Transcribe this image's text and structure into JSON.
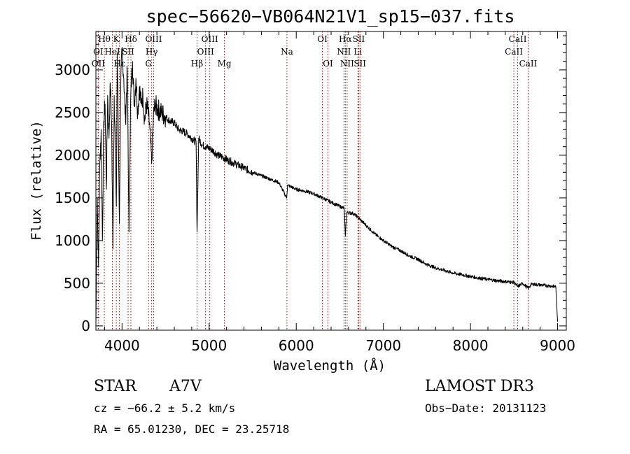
{
  "chart_data": {
    "type": "line",
    "title": "spec−56620−VB064N21V1_sp15−037.fits",
    "xlabel": "Wavelength (Å)",
    "ylabel": "Flux (relative)",
    "xlim": [
      3700,
      9100
    ],
    "ylim": [
      -50,
      3450
    ],
    "xticks": [
      4000,
      5000,
      6000,
      7000,
      8000,
      9000
    ],
    "yticks": [
      0,
      500,
      1000,
      1500,
      2000,
      2500,
      3000
    ],
    "series": [
      {
        "name": "flux",
        "x": [
          3700,
          3715,
          3730,
          3745,
          3760,
          3775,
          3790,
          3805,
          3820,
          3835,
          3850,
          3865,
          3880,
          3895,
          3910,
          3925,
          3935,
          3945,
          3955,
          3970,
          3985,
          4000,
          4020,
          4040,
          4060,
          4080,
          4100,
          4120,
          4140,
          4160,
          4180,
          4200,
          4220,
          4240,
          4260,
          4280,
          4300,
          4320,
          4340,
          4360,
          4380,
          4400,
          4450,
          4500,
          4550,
          4600,
          4650,
          4700,
          4750,
          4800,
          4850,
          4861,
          4880,
          4920,
          4960,
          5000,
          5050,
          5100,
          5150,
          5200,
          5300,
          5400,
          5500,
          5600,
          5700,
          5800,
          5890,
          5900,
          6000,
          6100,
          6200,
          6300,
          6400,
          6500,
          6550,
          6563,
          6580,
          6650,
          6700,
          6800,
          6900,
          7000,
          7100,
          7200,
          7300,
          7400,
          7500,
          7600,
          7700,
          7800,
          7900,
          8000,
          8100,
          8200,
          8300,
          8400,
          8500,
          8542,
          8600,
          8662,
          8700,
          8800,
          8900,
          8980,
          9000
        ],
        "y": [
          0,
          1500,
          700,
          1900,
          2300,
          1000,
          2400,
          2600,
          1600,
          2700,
          2200,
          2850,
          2400,
          900,
          2700,
          2000,
          1400,
          3200,
          2500,
          1200,
          2800,
          3250,
          2900,
          2400,
          3000,
          1100,
          2700,
          3100,
          2600,
          2900,
          2500,
          2800,
          2600,
          2700,
          2400,
          2600,
          2500,
          2300,
          1900,
          2450,
          2600,
          2550,
          2500,
          2450,
          2400,
          2380,
          2300,
          2280,
          2250,
          2200,
          2150,
          1100,
          2200,
          2120,
          2100,
          2080,
          2050,
          2000,
          1980,
          1950,
          1900,
          1850,
          1800,
          1760,
          1720,
          1680,
          1500,
          1650,
          1600,
          1580,
          1550,
          1500,
          1450,
          1400,
          1380,
          1050,
          1330,
          1320,
          1280,
          1180,
          1080,
          1000,
          930,
          880,
          820,
          780,
          720,
          680,
          650,
          620,
          600,
          580,
          560,
          545,
          530,
          520,
          510,
          460,
          500,
          440,
          490,
          480,
          470,
          460,
          50
        ]
      }
    ],
    "lines": [
      {
        "label": "Hθ",
        "x": 3797,
        "row": 0
      },
      {
        "label": "K",
        "x": 3934,
        "row": 0
      },
      {
        "label": "Hδ",
        "x": 4102,
        "row": 0
      },
      {
        "label": "OIII",
        "x": 4363,
        "row": 0
      },
      {
        "label": "OIII",
        "x": 5007,
        "row": 0
      },
      {
        "label": "OI",
        "x": 6300,
        "row": 0
      },
      {
        "label": "Hα",
        "x": 6563,
        "row": 0
      },
      {
        "label": "SII",
        "x": 6717,
        "row": 0
      },
      {
        "label": "CaII",
        "x": 8542,
        "row": 0
      },
      {
        "label": "OI",
        "x": 3727,
        "row": 1
      },
      {
        "label": "HeI",
        "x": 3889,
        "row": 1
      },
      {
        "label": "SII",
        "x": 4070,
        "row": 1
      },
      {
        "label": "Hγ",
        "x": 4340,
        "row": 1
      },
      {
        "label": "OIII",
        "x": 4959,
        "row": 1
      },
      {
        "label": "Na",
        "x": 5893,
        "row": 1
      },
      {
        "label": "NII",
        "x": 6548,
        "row": 1
      },
      {
        "label": "Li",
        "x": 6708,
        "row": 1
      },
      {
        "label": "CaII",
        "x": 8498,
        "row": 1
      },
      {
        "label": "OII",
        "x": 3727,
        "row": 2
      },
      {
        "label": "Hε",
        "x": 3970,
        "row": 2
      },
      {
        "label": "G",
        "x": 4304,
        "row": 2
      },
      {
        "label": "Hβ",
        "x": 4861,
        "row": 2
      },
      {
        "label": "Mg",
        "x": 5175,
        "row": 2
      },
      {
        "label": "OI",
        "x": 6364,
        "row": 2
      },
      {
        "label": "NII",
        "x": 6584,
        "row": 2
      },
      {
        "label": "SII",
        "x": 6731,
        "row": 2
      },
      {
        "label": "CaII",
        "x": 8662,
        "row": 2
      }
    ]
  },
  "info": {
    "object_class": "STAR",
    "subclass": "A7V",
    "survey": "LAMOST DR3",
    "cz": "cz = −66.2 ± 5.2 km/s",
    "obs_date": "Obs−Date: 20131123",
    "coords": "RA =  65.01230, DEC =  23.25718"
  }
}
